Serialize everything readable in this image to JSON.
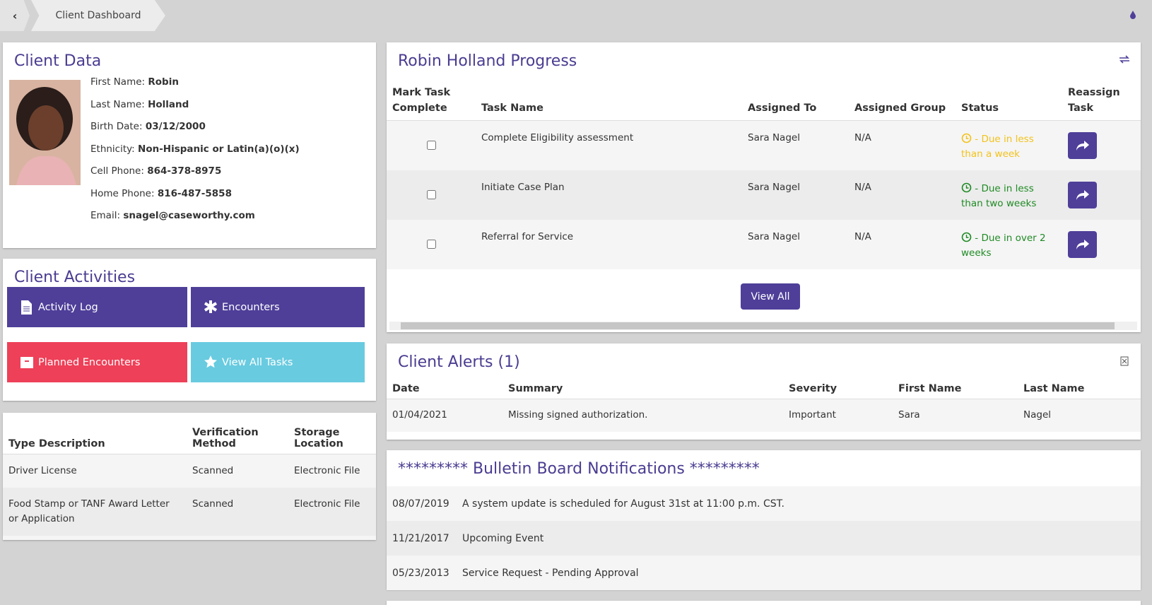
{
  "breadcrumb": {
    "back": "‹",
    "title": "Client Dashboard"
  },
  "client_data": {
    "title": "Client Data",
    "fields": [
      {
        "label": "First Name:",
        "value": "Robin"
      },
      {
        "label": "Last Name:",
        "value": "Holland"
      },
      {
        "label": "Birth Date:",
        "value": "03/12/2000"
      },
      {
        "label": "Ethnicity:",
        "value": "Non-Hispanic or Latin(a)(o)(x)"
      },
      {
        "label": "Cell Phone:",
        "value": "864-378-8975"
      },
      {
        "label": "Home Phone:",
        "value": "816-487-5858"
      },
      {
        "label": "Email:",
        "value": "snagel@caseworthy.com"
      }
    ]
  },
  "client_activities": {
    "title": "Client Activities",
    "buttons": [
      {
        "label": "Activity Log",
        "color": "#4f3f99"
      },
      {
        "label": "Encounters",
        "color": "#4f3f99"
      },
      {
        "label": "Planned Encounters",
        "color": "#ee4058"
      },
      {
        "label": "View All Tasks",
        "color": "#68cbe0"
      }
    ]
  },
  "documents": {
    "headers": [
      "Type Description",
      "Verification Method",
      "Storage Location"
    ],
    "rows": [
      [
        "Driver License",
        "Scanned",
        "Electronic File"
      ],
      [
        "Food Stamp or TANF Award Letter or Application",
        "Scanned",
        "Electronic File"
      ]
    ]
  },
  "progress": {
    "title": "Robin Holland Progress",
    "headers": [
      "Mark Task Complete",
      "Task Name",
      "Assigned To",
      "Assigned Group",
      "Status",
      "Reassign Task"
    ],
    "rows": [
      {
        "task": "Complete Eligibility assessment",
        "assigned_to": "Sara Nagel",
        "group": "N/A",
        "status": "- Due in less than a week",
        "color": "#f2c21b"
      },
      {
        "task": "Initiate Case Plan",
        "assigned_to": "Sara Nagel",
        "group": "N/A",
        "status": "- Due in less than two weeks",
        "color": "#1f8a24"
      },
      {
        "task": "Referral for Service",
        "assigned_to": "Sara Nagel",
        "group": "N/A",
        "status": "- Due in over 2 weeks",
        "color": "#1f8a24"
      }
    ],
    "button": "View All"
  },
  "alerts": {
    "title": "Client Alerts (1)",
    "headers": [
      "Date",
      "Summary",
      "Severity",
      "First Name",
      "Last Name"
    ],
    "rows": [
      [
        "01/04/2021",
        "Missing signed authorization.",
        "Important",
        "Sara",
        "Nagel"
      ]
    ]
  },
  "bulletin": {
    "title": "********* Bulletin Board Notifications *********",
    "items": [
      {
        "date": "08/07/2019",
        "text": "A system update is scheduled for August 31st at 11:00 p.m. CST."
      },
      {
        "date": "11/21/2017",
        "text": "Upcoming Event"
      },
      {
        "date": "05/23/2013",
        "text": "Service Request - Pending Approval"
      }
    ]
  }
}
